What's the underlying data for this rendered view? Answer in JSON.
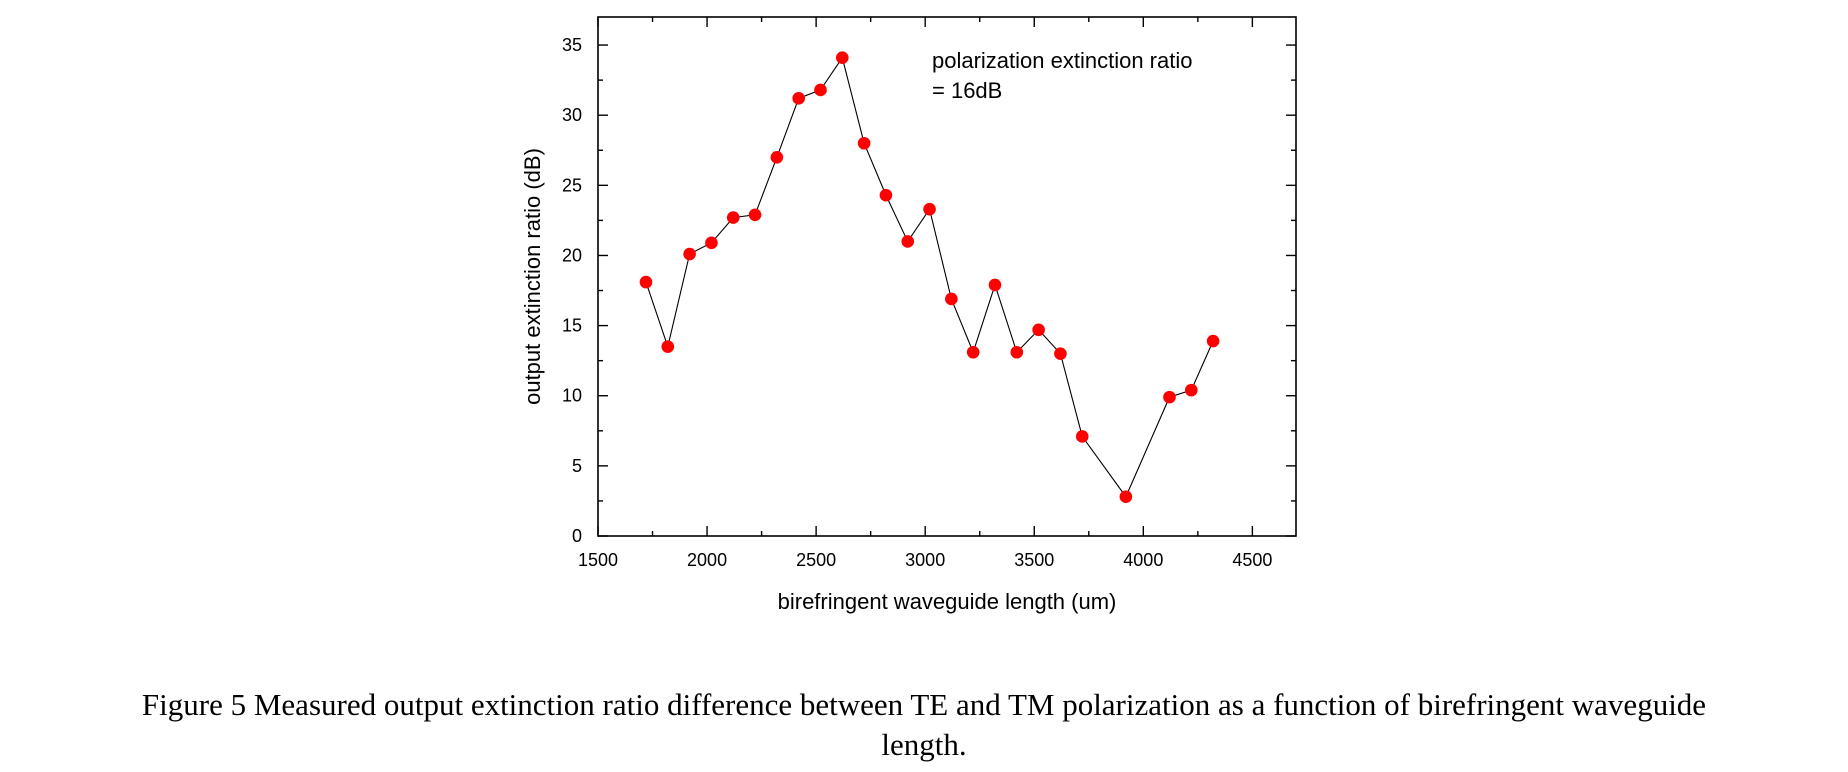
{
  "chart_data": {
    "type": "line",
    "xlabel": "birefringent waveguide length (um)",
    "ylabel": "output extinction ratio (dB)",
    "xlim": [
      1500,
      4700
    ],
    "ylim": [
      0,
      37
    ],
    "x_ticks": [
      1500,
      2000,
      2500,
      3000,
      3500,
      4000,
      4500
    ],
    "y_ticks": [
      0,
      5,
      10,
      15,
      20,
      25,
      30,
      35
    ],
    "grid": false,
    "annotation": [
      "polarization extinction ratio",
      "= 16dB"
    ],
    "series": [
      {
        "marker_color": "#ff0000",
        "line_color": "#000000",
        "x": [
          1720,
          1820,
          1920,
          2020,
          2120,
          2220,
          2320,
          2420,
          2520,
          2620,
          2720,
          2820,
          2920,
          3020,
          3120,
          3220,
          3320,
          3420,
          3520,
          3620,
          3720,
          3920,
          4120,
          4220,
          4320
        ],
        "y": [
          18.1,
          13.5,
          20.1,
          20.9,
          22.7,
          22.9,
          27.0,
          31.2,
          31.8,
          34.1,
          28.0,
          24.3,
          21.0,
          23.3,
          16.9,
          13.1,
          17.9,
          13.1,
          14.7,
          13.0,
          7.1,
          2.8,
          9.9,
          10.4,
          13.9
        ]
      }
    ]
  },
  "caption": {
    "line1": "Figure 5 Measured output extinction ratio difference between TE and TM polarization as a function of birefringent waveguide",
    "line2": "length."
  }
}
